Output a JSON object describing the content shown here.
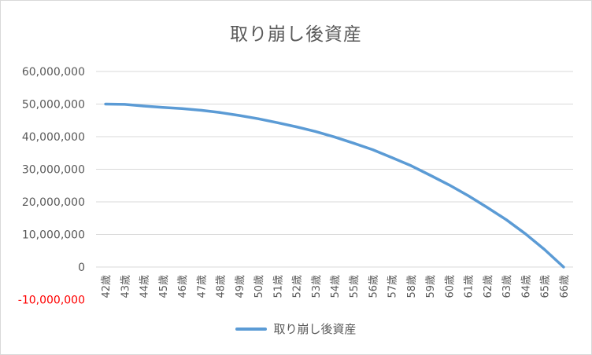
{
  "chart_data": {
    "type": "line",
    "title": "取り崩し後資産",
    "categories": [
      "42歳",
      "43歳",
      "44歳",
      "45歳",
      "46歳",
      "47歳",
      "48歳",
      "49歳",
      "50歳",
      "51歳",
      "52歳",
      "53歳",
      "54歳",
      "55歳",
      "56歳",
      "57歳",
      "58歳",
      "59歳",
      "60歳",
      "61歳",
      "62歳",
      "63歳",
      "64歳",
      "65歳",
      "66歳"
    ],
    "series": [
      {
        "name": "取り崩し後資産",
        "color": "#5b9bd5",
        "values": [
          50000000,
          49900000,
          49400000,
          49000000,
          48600000,
          48100000,
          47400000,
          46500000,
          45500000,
          44300000,
          43000000,
          41600000,
          39900000,
          38000000,
          36000000,
          33600000,
          31100000,
          28200000,
          25200000,
          21900000,
          18300000,
          14500000,
          10200000,
          5400000,
          0
        ]
      }
    ],
    "y_ticks": [
      "60,000,000",
      "50,000,000",
      "40,000,000",
      "30,000,000",
      "20,000,000",
      "10,000,000",
      "0",
      "-10,000,000"
    ],
    "y_tick_values": [
      60000000,
      50000000,
      40000000,
      30000000,
      20000000,
      10000000,
      0,
      -10000000
    ],
    "negative_tick_color": "#ff0000",
    "ylim": [
      -10000000,
      60000000
    ],
    "grid": true,
    "legend_position": "bottom"
  }
}
